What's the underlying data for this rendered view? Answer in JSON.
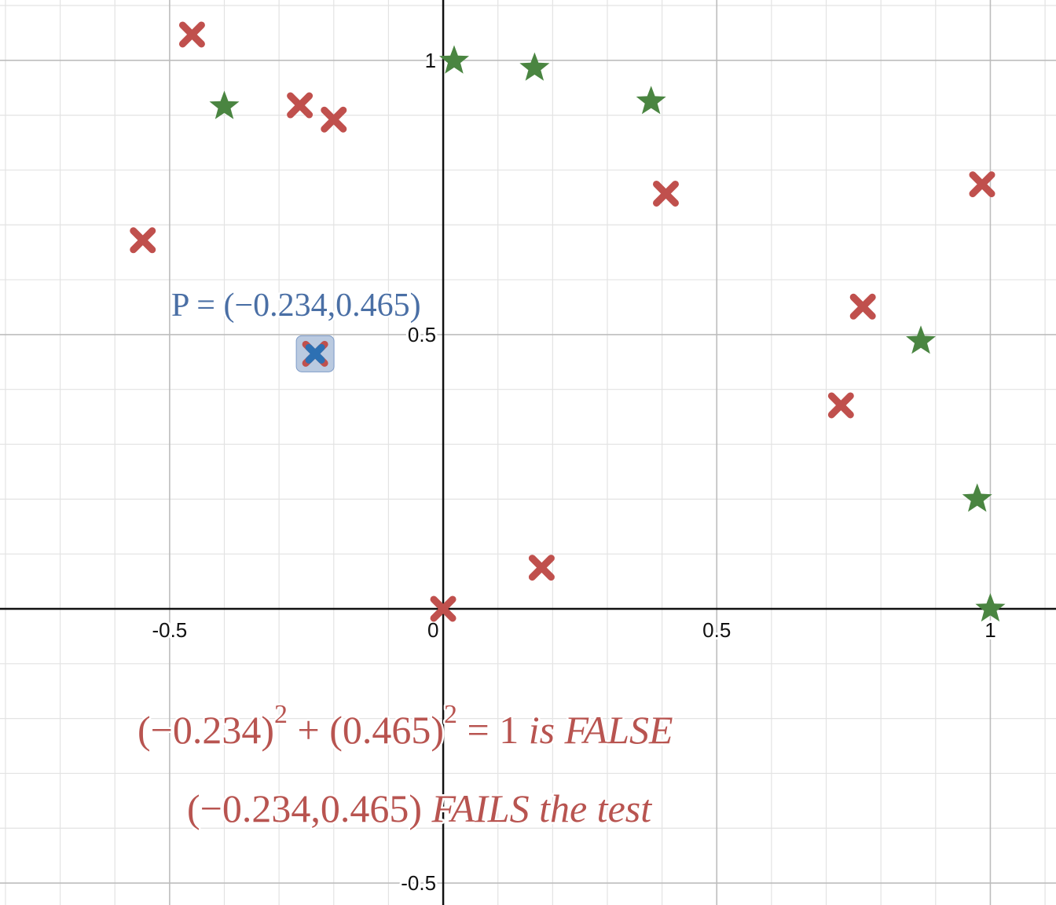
{
  "chart_data": {
    "type": "scatter",
    "xlim": [
      -0.81,
      1.12
    ],
    "ylim": [
      -0.54,
      1.11
    ],
    "grid": true,
    "x_ticks": [
      {
        "value": -0.5,
        "label": "-0.5"
      },
      {
        "value": 0,
        "label": "0"
      },
      {
        "value": 0.5,
        "label": "0.5"
      },
      {
        "value": 1,
        "label": "1"
      }
    ],
    "y_ticks": [
      {
        "value": 1,
        "label": "1"
      },
      {
        "value": 0.5,
        "label": "0.5"
      },
      {
        "value": -0.5,
        "label": "-0.5"
      }
    ],
    "series": [
      {
        "marker": "star",
        "color": "#4a8541",
        "points": [
          [
            0.02,
            0.999
          ],
          [
            0.167,
            0.986
          ],
          [
            0.38,
            0.925
          ],
          [
            -0.4,
            0.916
          ],
          [
            0.873,
            0.488
          ],
          [
            0.976,
            0.2
          ],
          [
            1.0,
            0.0
          ]
        ]
      },
      {
        "marker": "cross",
        "color": "#c0504d",
        "points": [
          [
            -0.459,
            1.047
          ],
          [
            -0.262,
            0.918
          ],
          [
            -0.2,
            0.892
          ],
          [
            0.407,
            0.757
          ],
          [
            0.985,
            0.774
          ],
          [
            -0.549,
            0.672
          ],
          [
            0.767,
            0.551
          ],
          [
            0.727,
            0.371
          ],
          [
            0.18,
            0.075
          ],
          [
            0.0,
            0.0
          ]
        ]
      }
    ],
    "highlighted_point": {
      "marker": "cross",
      "color": "#2d70b3",
      "x": -0.234,
      "y": 0.465
    },
    "annotations": {
      "point_label": "P = (−0.234,0.465)",
      "equation_left": "(−0.234)",
      "equation_exp1": "2",
      "equation_middle": " + (0.465)",
      "equation_exp2": "2",
      "equation_right": " = 1 ",
      "equation_verdict": "is FALSE",
      "result_point": "(−0.234,0.465) ",
      "result_verdict": "FAILS the test"
    },
    "colors": {
      "star": "#4a8541",
      "cross": "#c0504d",
      "highlight": "#2d70b3",
      "highlight_box": "#9db3d3",
      "annotation_blue": "#4a6fa5",
      "annotation_red": "#b85450",
      "grid_major": "#bdbdbd",
      "grid_minor": "#e3e3e3",
      "axis": "#111111"
    }
  }
}
